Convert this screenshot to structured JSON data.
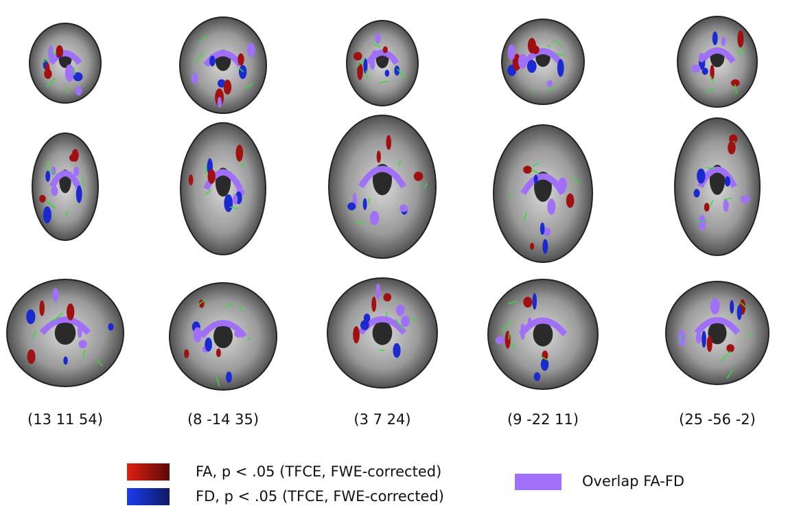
{
  "coordinates": [
    "(13 11 54)",
    "(8 -14 35)",
    "(3 7 24)",
    "(9 -22 11)",
    "(25 -56 -2)"
  ],
  "legend": {
    "fa": "FA, p < .05 (TFCE, FWE-corrected)",
    "fd": "FD, p < .05 (TFCE, FWE-corrected)",
    "overlap": "Overlap FA-FD"
  }
}
